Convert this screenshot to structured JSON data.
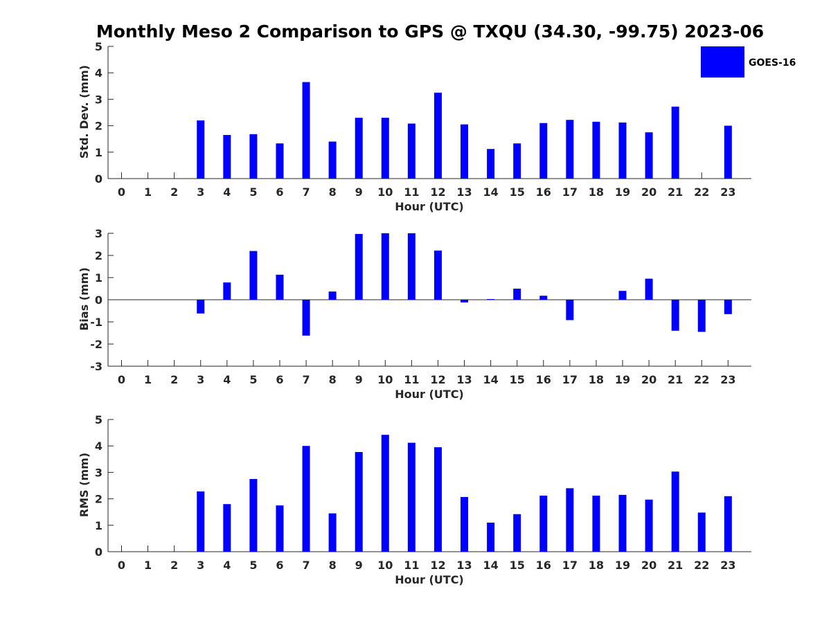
{
  "title": "Monthly Meso 2 Comparison to GPS @ TXQU (34.30, -99.75) 2023-06",
  "legend": {
    "label": "GOES-16",
    "color": "#0000ff"
  },
  "chart_data": [
    {
      "type": "bar",
      "xlabel": "Hour (UTC)",
      "ylabel": "Std. Dev. (mm)",
      "ylim": [
        0,
        5
      ],
      "yticks": [
        "0",
        "1",
        "2",
        "3",
        "4",
        "5"
      ],
      "categories": [
        "0",
        "1",
        "2",
        "3",
        "4",
        "5",
        "6",
        "7",
        "8",
        "9",
        "10",
        "11",
        "12",
        "13",
        "14",
        "15",
        "16",
        "17",
        "18",
        "19",
        "20",
        "21",
        "22",
        "23"
      ],
      "series": [
        {
          "name": "GOES-16",
          "values": [
            null,
            null,
            null,
            2.2,
            1.65,
            1.68,
            1.33,
            3.65,
            1.4,
            2.3,
            2.3,
            2.08,
            3.25,
            2.05,
            1.12,
            1.33,
            2.1,
            2.22,
            2.15,
            2.12,
            1.75,
            2.72,
            null,
            2.0
          ]
        }
      ],
      "grid": false,
      "legend_position": "top-right"
    },
    {
      "type": "bar",
      "xlabel": "Hour (UTC)",
      "ylabel": "Bias (mm)",
      "ylim": [
        -3,
        3
      ],
      "yticks": [
        "-3",
        "-2",
        "-1",
        "0",
        "1",
        "2",
        "3"
      ],
      "categories": [
        "0",
        "1",
        "2",
        "3",
        "4",
        "5",
        "6",
        "7",
        "8",
        "9",
        "10",
        "11",
        "12",
        "13",
        "14",
        "15",
        "16",
        "17",
        "18",
        "19",
        "20",
        "21",
        "22",
        "23"
      ],
      "series": [
        {
          "name": "GOES-16",
          "values": [
            null,
            null,
            null,
            -0.62,
            0.78,
            2.2,
            1.13,
            -1.62,
            0.37,
            2.97,
            3.0,
            3.0,
            2.22,
            -0.12,
            0.03,
            0.5,
            0.18,
            -0.92,
            null,
            0.4,
            0.95,
            -1.4,
            -1.45,
            -0.65
          ]
        }
      ],
      "grid": false
    },
    {
      "type": "bar",
      "xlabel": "Hour (UTC)",
      "ylabel": "RMS (mm)",
      "ylim": [
        0,
        5
      ],
      "yticks": [
        "0",
        "1",
        "2",
        "3",
        "4",
        "5"
      ],
      "categories": [
        "0",
        "1",
        "2",
        "3",
        "4",
        "5",
        "6",
        "7",
        "8",
        "9",
        "10",
        "11",
        "12",
        "13",
        "14",
        "15",
        "16",
        "17",
        "18",
        "19",
        "20",
        "21",
        "22",
        "23"
      ],
      "series": [
        {
          "name": "GOES-16",
          "values": [
            null,
            null,
            null,
            2.28,
            1.8,
            2.75,
            1.75,
            4.0,
            1.45,
            3.77,
            4.42,
            4.12,
            3.95,
            2.07,
            1.1,
            1.42,
            2.12,
            2.4,
            2.12,
            2.15,
            1.97,
            3.03,
            1.48,
            2.1
          ]
        }
      ],
      "grid": false
    }
  ]
}
